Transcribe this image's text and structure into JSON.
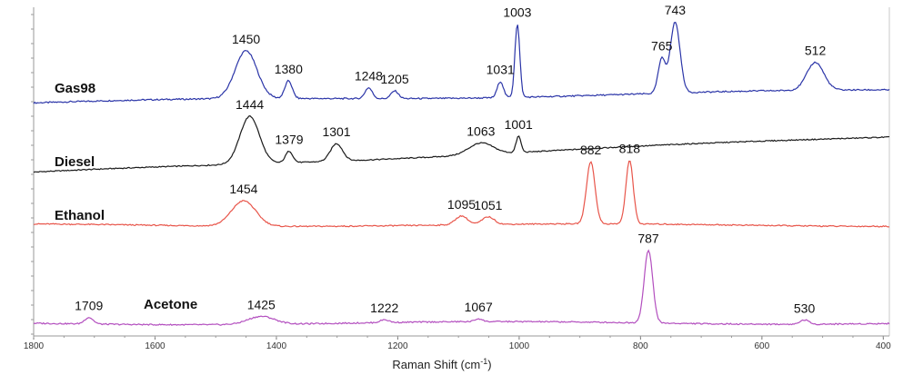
{
  "chart_data": {
    "type": "line",
    "xlabel_main": "Raman Shift (cm",
    "xlabel_sup": "-1",
    "xlabel_end": ")",
    "xlim": [
      1800,
      390
    ],
    "x_ticks": [
      "1800",
      "1600",
      "1400",
      "1200",
      "1000",
      "800",
      "600",
      "400"
    ],
    "x_tick_values": [
      1800,
      1600,
      1400,
      1200,
      1000,
      800,
      600,
      400
    ],
    "series": [
      {
        "name": "Gas98",
        "color": "#2b35a8",
        "baseline_start": 0.02,
        "baseline_end": 0.18,
        "peaks": [
          {
            "x": 1450,
            "label": "1450",
            "height": 0.62,
            "width": 18
          },
          {
            "x": 1380,
            "label": "1380",
            "height": 0.23,
            "width": 6
          },
          {
            "x": 1248,
            "label": "1248",
            "height": 0.14,
            "width": 6
          },
          {
            "x": 1205,
            "label": "1205",
            "height": 0.1,
            "width": 6
          },
          {
            "x": 1031,
            "label": "1031",
            "height": 0.21,
            "width": 5
          },
          {
            "x": 1003,
            "label": "1003",
            "height": 0.95,
            "width": 4
          },
          {
            "x": 765,
            "label": "765",
            "height": 0.44,
            "width": 6
          },
          {
            "x": 743,
            "label": "743",
            "height": 0.92,
            "width": 8
          },
          {
            "x": 512,
            "label": "512",
            "height": 0.36,
            "width": 14
          }
        ]
      },
      {
        "name": "Diesel",
        "color": "#1a1a1a",
        "baseline_start": 0.1,
        "baseline_end": 0.73,
        "peaks": [
          {
            "x": 1444,
            "label": "1444",
            "height": 0.82,
            "width": 16
          },
          {
            "x": 1379,
            "label": "1379",
            "height": 0.2,
            "width": 6
          },
          {
            "x": 1301,
            "label": "1301",
            "height": 0.3,
            "width": 10
          },
          {
            "x": 1063,
            "label": "1063",
            "height": 0.2,
            "width": 20
          },
          {
            "x": 1001,
            "label": "1001",
            "height": 0.28,
            "width": 4
          }
        ]
      },
      {
        "name": "Ethanol",
        "color": "#e8554a",
        "baseline_start": 0.03,
        "baseline_end": 0.03,
        "peaks": [
          {
            "x": 1454,
            "label": "1454",
            "height": 0.4,
            "width": 20
          },
          {
            "x": 1095,
            "label": "1095",
            "height": 0.14,
            "width": 10
          },
          {
            "x": 1051,
            "label": "1051",
            "height": 0.12,
            "width": 10
          },
          {
            "x": 882,
            "label": "882",
            "height": 0.98,
            "width": 7
          },
          {
            "x": 818,
            "label": "818",
            "height": 1.0,
            "width": 6
          }
        ]
      },
      {
        "name": "Acetone",
        "color": "#b34fbf",
        "baseline_start": 0.01,
        "baseline_end": 0.02,
        "peaks": [
          {
            "x": 1709,
            "label": "1709",
            "height": 0.09,
            "width": 7
          },
          {
            "x": 1425,
            "label": "1425",
            "height": 0.11,
            "width": 22
          },
          {
            "x": 1222,
            "label": "1222",
            "height": 0.04,
            "width": 7
          },
          {
            "x": 1067,
            "label": "1067",
            "height": 0.04,
            "width": 6
          },
          {
            "x": 787,
            "label": "787",
            "height": 1.0,
            "width": 7
          },
          {
            "x": 530,
            "label": "530",
            "height": 0.06,
            "width": 7
          }
        ]
      }
    ]
  }
}
